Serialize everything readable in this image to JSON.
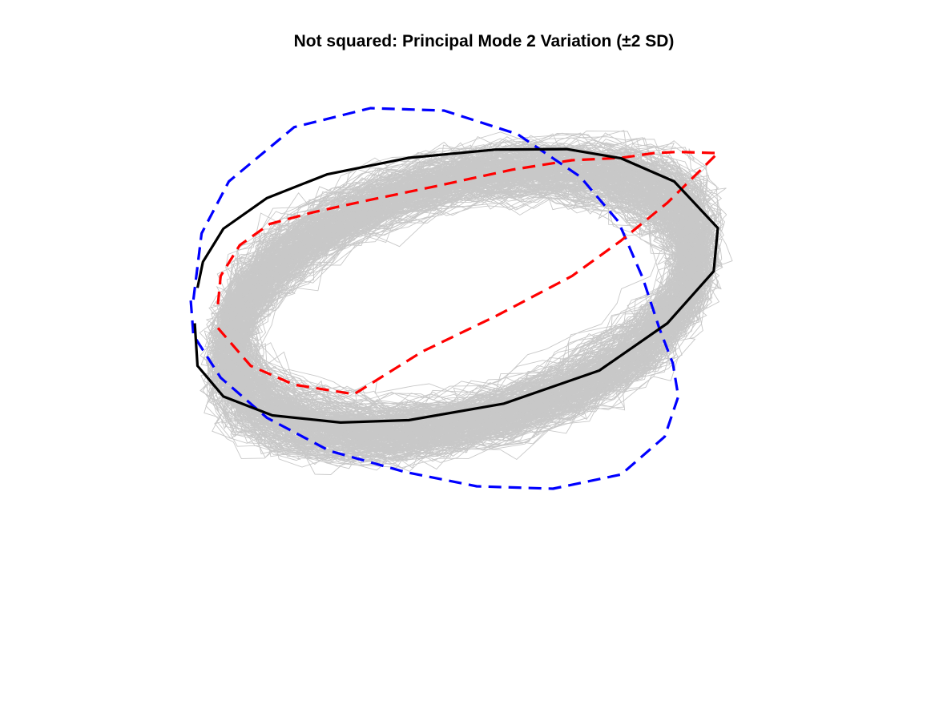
{
  "chart_data": {
    "type": "line",
    "title": "Not squared: Principal Mode 2 Variation (±2 SD)",
    "xlabel": "",
    "ylabel": "",
    "axes_visible": false,
    "grid": false,
    "legend": "none",
    "background_samples": {
      "count": 300,
      "color": "#c8c8c8",
      "description_source": "individual shape outlines"
    },
    "series": [
      {
        "role": "mean",
        "color": "#000000",
        "style": "solid",
        "x": [
          -0.975,
          -0.955,
          -0.88,
          -0.72,
          -0.5,
          -0.2,
          0.12,
          0.38,
          0.58,
          0.775,
          0.935,
          0.92,
          0.75,
          0.5,
          0.15,
          -0.2,
          -0.45,
          -0.7,
          -0.88,
          -0.975,
          -0.985
        ],
        "y": [
          0.05,
          0.16,
          0.3,
          0.43,
          0.53,
          0.6,
          0.635,
          0.637,
          0.598,
          0.5,
          0.303,
          0.12,
          -0.1,
          -0.3,
          -0.44,
          -0.51,
          -0.52,
          -0.49,
          -0.41,
          -0.28,
          -0.1
        ]
      },
      {
        "role": "+2 SD",
        "color": "#0000ff",
        "style": "dashed",
        "x": [
          -0.99,
          -0.96,
          -0.86,
          -0.62,
          -0.34,
          -0.07,
          0.2,
          0.43,
          0.57,
          0.66,
          0.72,
          0.77,
          0.79,
          0.74,
          0.58,
          0.33,
          0.05,
          -0.21,
          -0.49,
          -0.72,
          -0.89,
          -0.99,
          -1.0
        ],
        "y": [
          0.0,
          0.28,
          0.5,
          0.73,
          0.81,
          0.8,
          0.7,
          0.52,
          0.33,
          0.09,
          -0.12,
          -0.27,
          -0.41,
          -0.58,
          -0.74,
          -0.8,
          -0.79,
          -0.73,
          -0.64,
          -0.5,
          -0.33,
          -0.15,
          0.0
        ]
      },
      {
        "role": "-2 SD",
        "color": "#ff0000",
        "style": "dashed",
        "x": [
          -0.9,
          -0.89,
          -0.82,
          -0.71,
          -0.55,
          -0.35,
          -0.1,
          0.18,
          0.4,
          0.58,
          0.7,
          0.79,
          0.935,
          0.75,
          0.58,
          0.4,
          0.12,
          -0.15,
          -0.4,
          -0.62,
          -0.78,
          -0.9
        ],
        "y": [
          -0.02,
          0.1,
          0.23,
          0.32,
          0.37,
          0.42,
          0.48,
          0.55,
          0.59,
          0.6,
          0.62,
          0.625,
          0.62,
          0.41,
          0.25,
          0.1,
          -0.07,
          -0.22,
          -0.4,
          -0.36,
          -0.28,
          -0.12
        ]
      }
    ]
  }
}
